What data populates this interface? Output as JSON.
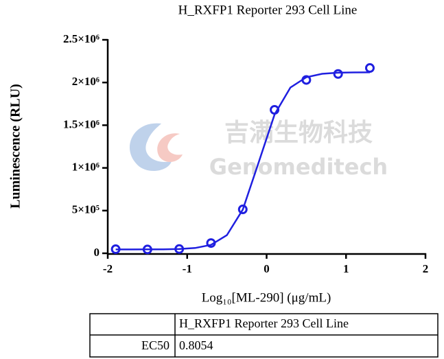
{
  "chart_data": {
    "type": "scatter",
    "title": "H_RXFP1 Reporter 293 Cell Line",
    "x_label": "Log₁₀[ML-290] (μg/mL)",
    "y_label": "Luminescence (RLU)",
    "color": "#1f1fe0",
    "x": [
      -1.9,
      -1.5,
      -1.1,
      -0.7,
      -0.3,
      0.1,
      0.5,
      0.9,
      1.3
    ],
    "values": [
      48000,
      45000,
      50000,
      120000,
      514000,
      1680000,
      2030000,
      2100000,
      2170000
    ],
    "curve": {
      "x": [
        -1.9,
        -1.7,
        -1.5,
        -1.3,
        -1.1,
        -0.9,
        -0.7,
        -0.5,
        -0.3,
        -0.1,
        0.1,
        0.3,
        0.5,
        0.7,
        0.9,
        1.1,
        1.3
      ],
      "values": [
        45000,
        45100,
        45500,
        46500,
        50000,
        61500,
        98600,
        212000,
        512000,
        1064000,
        1625000,
        1941000,
        2062000,
        2102000,
        2115000,
        2118000,
        2119000
      ]
    },
    "xlim": [
      -2,
      2
    ],
    "xticks": [
      -2,
      -1,
      0,
      1,
      2
    ],
    "ylim": [
      0,
      2500000
    ],
    "yticks": [
      0,
      {
        "value": 500000,
        "label": "5×10⁵"
      },
      {
        "value": 1000000,
        "label": "1×10⁶"
      },
      {
        "value": 1500000,
        "label": "1.5×10⁶"
      },
      {
        "value": 2000000,
        "label": "2×10⁶"
      },
      {
        "value": 2500000,
        "label": "2.5×10⁶"
      }
    ]
  },
  "watermark": {
    "chinese": "吉满生物科技",
    "english": "Genomeditech"
  },
  "table": {
    "header": "H_RXFP1 Reporter 293 Cell Line",
    "rows": [
      [
        "EC50",
        "0.8054"
      ]
    ]
  }
}
